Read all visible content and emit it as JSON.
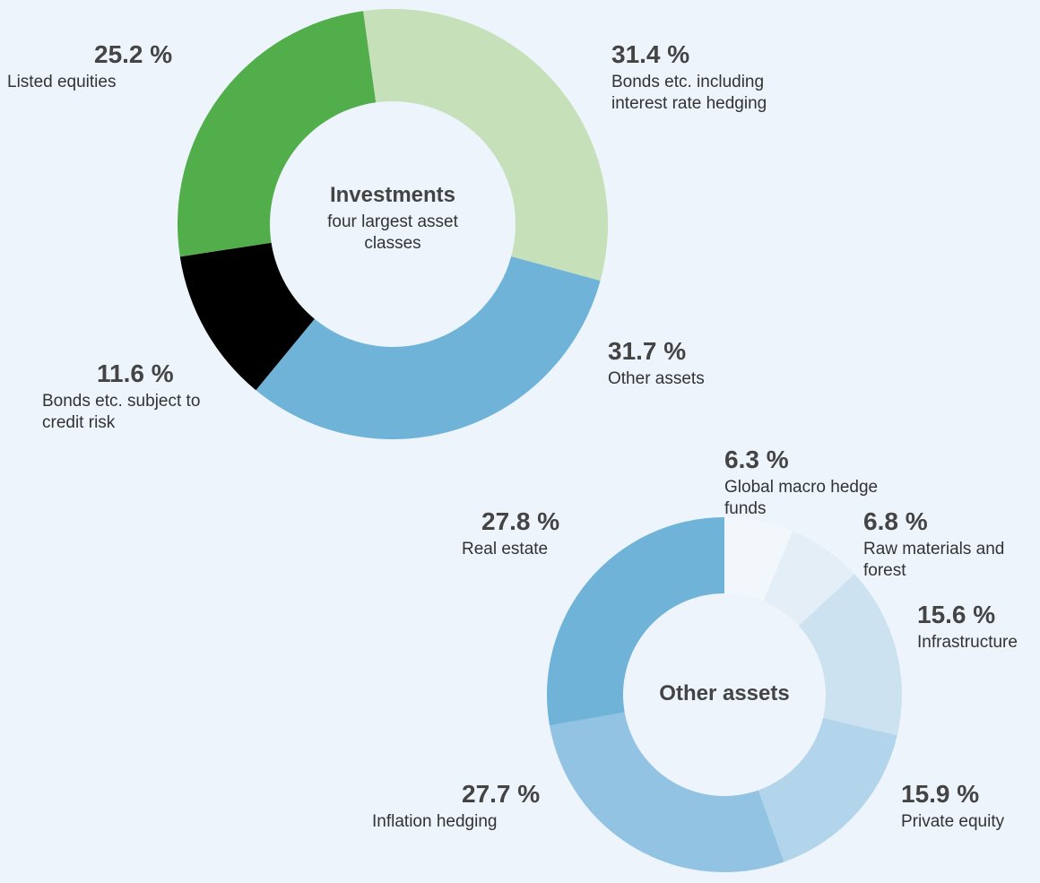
{
  "chart_data": [
    {
      "type": "donut",
      "title": "Investments",
      "subtitle": "four largest asset classes",
      "categories": [
        "Bonds etc. including interest rate hedging",
        "Other assets",
        "Bonds etc. subject to credit risk",
        "Listed equities"
      ],
      "values": [
        31.4,
        31.7,
        11.6,
        25.2
      ],
      "value_labels": [
        "31.4 %",
        "31.7 %",
        "11.6 %",
        "25.2 %"
      ],
      "colors": [
        "#c6e0b9",
        "#6fb4d8",
        "#000000",
        "#52ae4b"
      ]
    },
    {
      "type": "donut",
      "title": "Other assets",
      "categories": [
        "Global macro hedge funds",
        "Raw materials and forest",
        "Infrastructure",
        "Private equity",
        "Inflation hedging",
        "Real estate"
      ],
      "values": [
        6.3,
        6.8,
        15.6,
        15.9,
        27.7,
        27.8
      ],
      "value_labels": [
        "6.3 %",
        "6.8 %",
        "15.6 %",
        "15.9 %",
        "27.7 %",
        "27.8 %"
      ],
      "colors": [
        "#f2f7fb",
        "#e3eef7",
        "#cde2f1",
        "#b3d5eb",
        "#93c3e2",
        "#6fb4d8"
      ]
    }
  ]
}
